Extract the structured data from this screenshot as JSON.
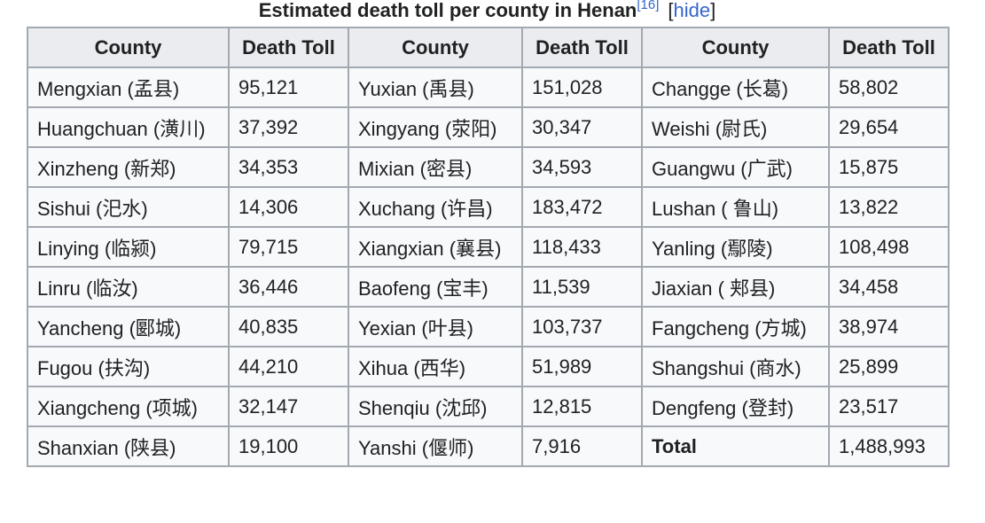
{
  "caption": {
    "title": "Estimated death toll per county in Henan",
    "ref": "[16]",
    "hide_open": "[",
    "hide_label": "hide",
    "hide_close": "]"
  },
  "headers": [
    "County",
    "Death Toll",
    "County",
    "Death Toll",
    "County",
    "Death Toll"
  ],
  "rows": [
    [
      "Mengxian (孟县)",
      "95,121",
      "Yuxian (禹县)",
      "151,028",
      "Changge (长葛)",
      "58,802"
    ],
    [
      "Huangchuan (潢川)",
      "37,392",
      "Xingyang (荥阳)",
      "30,347",
      "Weishi (尉氏)",
      "29,654"
    ],
    [
      "Xinzheng (新郑)",
      "34,353",
      "Mixian (密县)",
      "34,593",
      "Guangwu (广武)",
      "15,875"
    ],
    [
      "Sishui (汜水)",
      "14,306",
      "Xuchang (许昌)",
      "183,472",
      "Lushan ( 鲁山)",
      "13,822"
    ],
    [
      "Linying (临颍)",
      "79,715",
      "Xiangxian (襄县)",
      "118,433",
      "Yanling (鄢陵)",
      "108,498"
    ],
    [
      "Linru (临汝)",
      "36,446",
      "Baofeng (宝丰)",
      "11,539",
      "Jiaxian ( 郏县)",
      "34,458"
    ],
    [
      "Yancheng (郾城)",
      "40,835",
      "Yexian (叶县)",
      "103,737",
      "Fangcheng (方城)",
      "38,974"
    ],
    [
      "Fugou (扶沟)",
      "44,210",
      "Xihua (西华)",
      "51,989",
      "Shangshui (商水)",
      "25,899"
    ],
    [
      "Xiangcheng (项城)",
      "32,147",
      "Shenqiu (沈邱)",
      "12,815",
      "Dengfeng (登封)",
      "23,517"
    ],
    [
      "Shanxian (陕县)",
      "19,100",
      "Yanshi (偃师)",
      "7,916",
      "Total",
      "1,488,993"
    ]
  ]
}
